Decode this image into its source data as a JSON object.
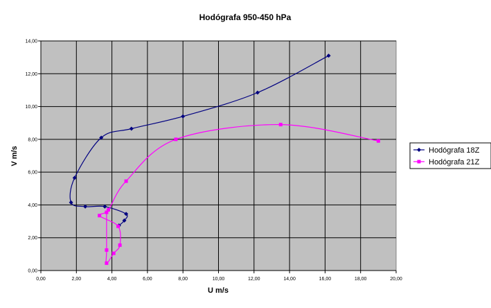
{
  "chart_data": {
    "type": "scatter",
    "title": "Hodógrafa 950-450 hPa",
    "xlabel": "U m/s",
    "ylabel": "V m/s",
    "xlim": [
      0,
      20
    ],
    "ylim": [
      0,
      14
    ],
    "xticks": [
      "0,00",
      "2,00",
      "4,00",
      "6,00",
      "8,00",
      "10,00",
      "12,00",
      "14,00",
      "16,00",
      "18,00",
      "20,00"
    ],
    "yticks": [
      "0,00",
      "2,00",
      "4,00",
      "6,00",
      "8,00",
      "10,00",
      "12,00",
      "14,00"
    ],
    "grid": true,
    "plot_background": "#c0c0c0",
    "legend_position": "right",
    "series": [
      {
        "name": "Hodógrafa 18Z",
        "color": "#000080",
        "marker": "diamond",
        "points": [
          [
            16.2,
            13.1
          ],
          [
            12.2,
            10.85
          ],
          [
            8.0,
            9.4
          ],
          [
            5.1,
            8.65
          ],
          [
            3.4,
            8.1
          ],
          [
            1.9,
            5.65
          ],
          [
            1.7,
            4.15
          ],
          [
            2.5,
            3.9
          ],
          [
            3.6,
            3.9
          ],
          [
            4.8,
            3.45
          ],
          [
            4.7,
            3.05
          ],
          [
            4.4,
            2.75
          ]
        ]
      },
      {
        "name": "Hodógrafa 21Z",
        "color": "#ff00ff",
        "marker": "square",
        "points": [
          [
            19.0,
            7.9
          ],
          [
            13.5,
            8.9
          ],
          [
            7.6,
            8.0
          ],
          [
            4.8,
            5.45
          ],
          [
            3.8,
            3.7
          ],
          [
            3.3,
            3.35
          ],
          [
            4.35,
            2.7
          ],
          [
            4.45,
            1.55
          ],
          [
            4.1,
            1.05
          ],
          [
            3.7,
            0.45
          ],
          [
            3.7,
            1.25
          ],
          [
            3.7,
            3.55
          ]
        ]
      }
    ]
  }
}
